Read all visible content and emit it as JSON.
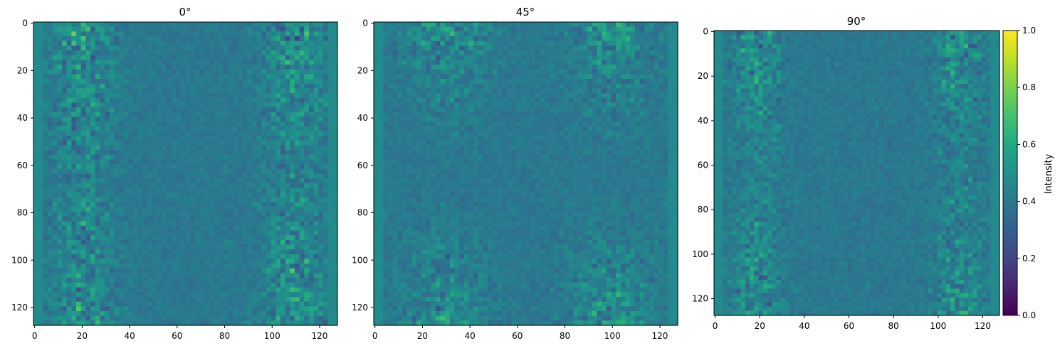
{
  "chart_data": {
    "type": "heatmap",
    "colormap": "viridis",
    "shared_scale": {
      "vmin": 0.0,
      "vmax": 1.0
    },
    "grid": false,
    "panels": [
      {
        "title": "0°",
        "xlim": [
          0,
          127
        ],
        "ylim": [
          0,
          127
        ],
        "x_ticks": [
          "0",
          "20",
          "40",
          "60",
          "80",
          "100",
          "120"
        ],
        "y_ticks": [
          "0",
          "20",
          "40",
          "60",
          "80",
          "100",
          "120"
        ],
        "pattern": "bright noisy bands along left and right edges, strongest in top and bottom corners (x~10-30 and x~100-118); central region ~0.35-0.45"
      },
      {
        "title": "45°",
        "xlim": [
          0,
          127
        ],
        "ylim": [
          0,
          127
        ],
        "x_ticks": [
          "0",
          "20",
          "40",
          "60",
          "80",
          "100",
          "120"
        ],
        "y_ticks": [
          "0",
          "20",
          "40",
          "60",
          "80",
          "100",
          "120"
        ],
        "pattern": "bright lobes in the four corners (x~20-40 and x~90-110), diagonal texture; central region ~0.35-0.45"
      },
      {
        "title": "90°",
        "xlim": [
          0,
          127
        ],
        "ylim": [
          0,
          127
        ],
        "x_ticks": [
          "0",
          "20",
          "40",
          "60",
          "80",
          "100",
          "120"
        ],
        "y_ticks": [
          "0",
          "20",
          "40",
          "60",
          "80",
          "100",
          "120"
        ],
        "pattern": "bright vertical bands near x~15-25 and x~100-115, brightest at top and bottom; central region ~0.35-0.45"
      }
    ],
    "colorbar": {
      "label": "Intensity",
      "ticks": [
        "0.0",
        "0.2",
        "0.4",
        "0.6",
        "0.8",
        "1.0"
      ],
      "range": [
        0.0,
        1.0
      ]
    }
  }
}
